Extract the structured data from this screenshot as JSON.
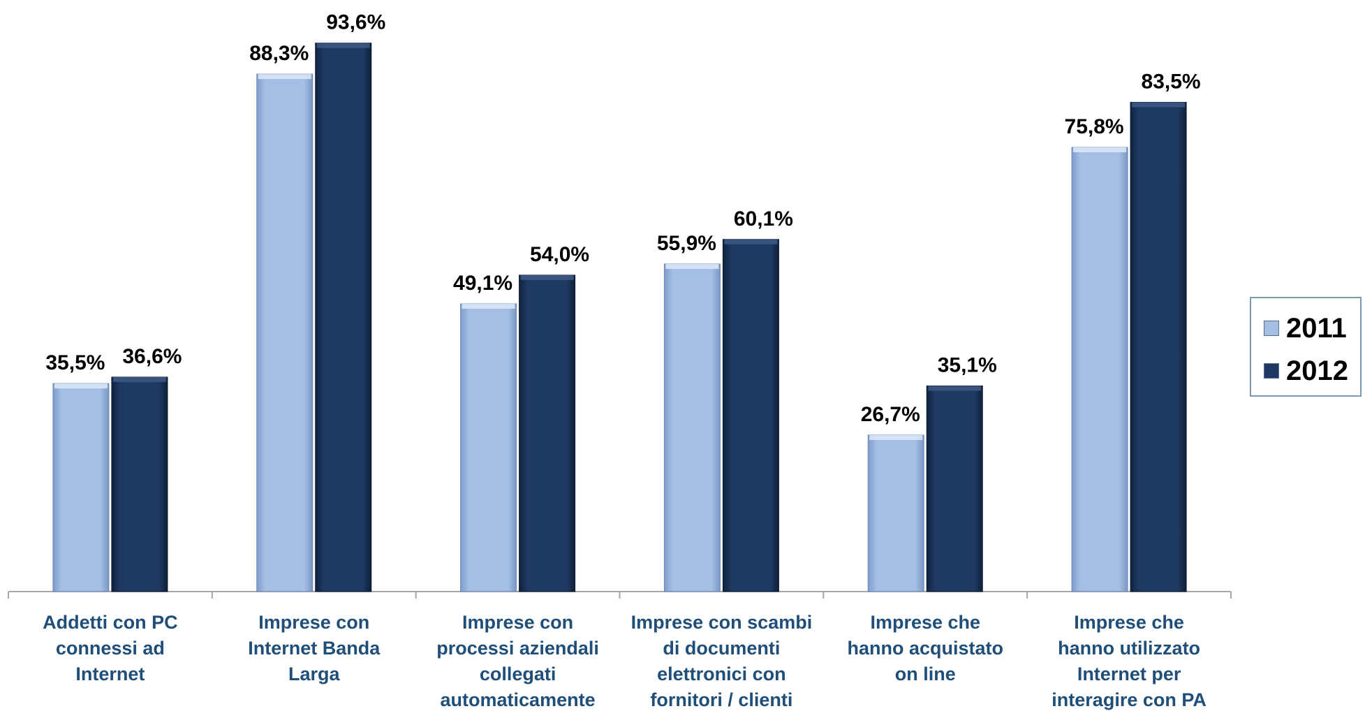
{
  "chart_data": {
    "type": "bar",
    "categories": [
      [
        "Addetti con PC",
        "connessi ad",
        "Internet"
      ],
      [
        "Imprese con",
        "Internet Banda",
        "Larga"
      ],
      [
        "Imprese con",
        "processi aziendali",
        "collegati",
        "automaticamente"
      ],
      [
        "Imprese con scambi",
        "di documenti",
        "elettronici con",
        "fornitori / clienti"
      ],
      [
        "Imprese che",
        "hanno acquistato",
        "on line"
      ],
      [
        "Imprese che",
        "hanno utilizzato",
        "Internet per",
        "interagire con PA"
      ]
    ],
    "series": [
      {
        "name": "2011",
        "values": [
          35.5,
          88.3,
          49.1,
          55.9,
          26.7,
          75.8
        ],
        "labels": [
          "35,5%",
          "88,3%",
          "49,1%",
          "55,9%",
          "26,7%",
          "75,8%"
        ],
        "color": "#a4bfe3"
      },
      {
        "name": "2012",
        "values": [
          36.6,
          93.6,
          54.0,
          60.1,
          35.1,
          83.5
        ],
        "labels": [
          "36,6%",
          "93,6%",
          "54,0%",
          "60,1%",
          "35,1%",
          "83,5%"
        ],
        "color": "#1f3a62"
      }
    ],
    "ylim": [
      0,
      100
    ],
    "legend_position": "right",
    "grid": false
  },
  "legend": {
    "items": [
      {
        "label": "2011",
        "color": "#a4bfe3"
      },
      {
        "label": "2012",
        "color": "#1f3a62"
      }
    ]
  }
}
